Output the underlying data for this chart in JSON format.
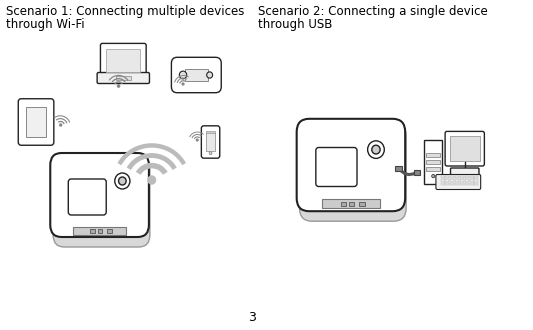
{
  "title_left_line1": "Scenario 1: Connecting multiple devices",
  "title_left_line2": "through Wi-Fi",
  "title_right_line1": "Scenario 2: Connecting a single device",
  "title_right_line2": "through USB",
  "page_number": "3",
  "background_color": "#ffffff",
  "text_color": "#000000",
  "title_fontsize": 8.5,
  "page_num_fontsize": 9,
  "fig_width": 5.33,
  "fig_height": 3.3,
  "dpi": 100,
  "lw": 1.0,
  "ec": "#222222",
  "wifi_color": "#bbbbbb",
  "small_wifi_color": "#888888"
}
